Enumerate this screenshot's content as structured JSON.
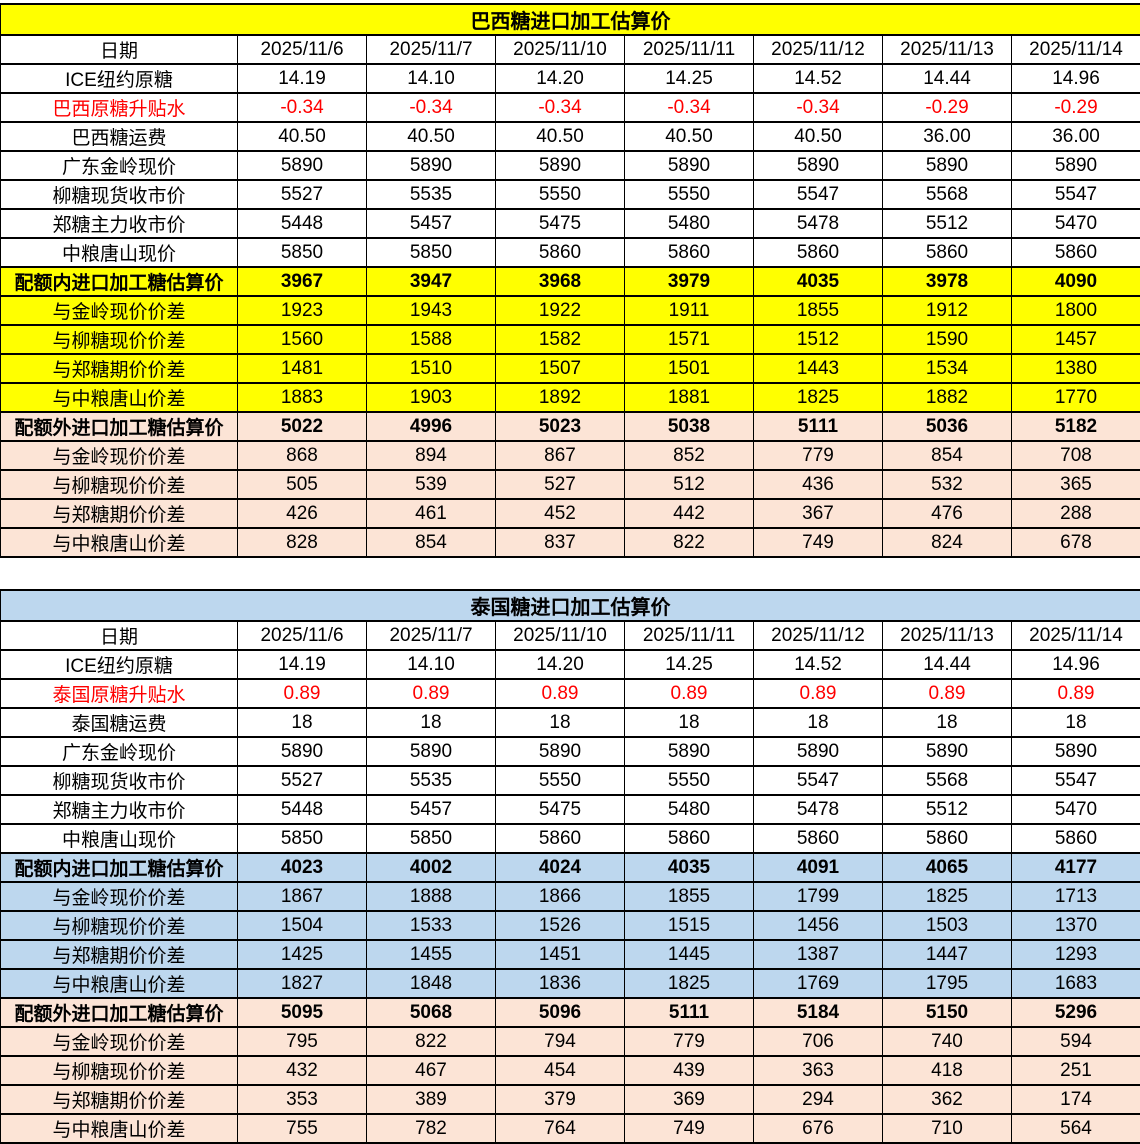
{
  "colors": {
    "border": "#000000",
    "red_text": "#FF0000",
    "yellow": "#FFFF00",
    "blue": "#BDD7EE",
    "peach": "#FCE4D6",
    "white": "#FFFFFF"
  },
  "date_label": "日期",
  "dates": [
    "2025/11/6",
    "2025/11/7",
    "2025/11/10",
    "2025/11/11",
    "2025/11/12",
    "2025/11/13",
    "2025/11/14"
  ],
  "tables": [
    {
      "id": "brazil",
      "title": "巴西糖进口加工估算价",
      "theme": {
        "title_bg": "#FFFF00",
        "quota_bg": "#FFFF00",
        "extra_bg": "#FCE4D6",
        "plain_bg": "#FFFFFF"
      },
      "rows": [
        {
          "label": "ICE纽约原糖",
          "style": "plain",
          "values": [
            "14.19",
            "14.10",
            "14.20",
            "14.25",
            "14.52",
            "14.44",
            "14.96"
          ]
        },
        {
          "label": "巴西原糖升贴水",
          "style": "red",
          "values": [
            "-0.34",
            "-0.34",
            "-0.34",
            "-0.34",
            "-0.34",
            "-0.29",
            "-0.29"
          ]
        },
        {
          "label": "巴西糖运费",
          "style": "plain",
          "values": [
            "40.50",
            "40.50",
            "40.50",
            "40.50",
            "40.50",
            "36.00",
            "36.00"
          ]
        },
        {
          "label": "广东金岭现价",
          "style": "plain",
          "values": [
            "5890",
            "5890",
            "5890",
            "5890",
            "5890",
            "5890",
            "5890"
          ]
        },
        {
          "label": "柳糖现货收市价",
          "style": "plain",
          "values": [
            "5527",
            "5535",
            "5550",
            "5550",
            "5547",
            "5568",
            "5547"
          ]
        },
        {
          "label": "郑糖主力收市价",
          "style": "plain",
          "values": [
            "5448",
            "5457",
            "5475",
            "5480",
            "5478",
            "5512",
            "5470"
          ]
        },
        {
          "label": "中粮唐山现价",
          "style": "plain",
          "values": [
            "5850",
            "5850",
            "5860",
            "5860",
            "5860",
            "5860",
            "5860"
          ]
        },
        {
          "label": "配额内进口加工糖估算价",
          "style": "quota-bold",
          "values": [
            "3967",
            "3947",
            "3968",
            "3979",
            "4035",
            "3978",
            "4090"
          ]
        },
        {
          "label": "与金岭现价价差",
          "style": "quota",
          "values": [
            "1923",
            "1943",
            "1922",
            "1911",
            "1855",
            "1912",
            "1800"
          ]
        },
        {
          "label": "与柳糖现价价差",
          "style": "quota",
          "values": [
            "1560",
            "1588",
            "1582",
            "1571",
            "1512",
            "1590",
            "1457"
          ]
        },
        {
          "label": "与郑糖期价价差",
          "style": "quota",
          "values": [
            "1481",
            "1510",
            "1507",
            "1501",
            "1443",
            "1534",
            "1380"
          ]
        },
        {
          "label": "与中粮唐山价差",
          "style": "quota",
          "values": [
            "1883",
            "1903",
            "1892",
            "1881",
            "1825",
            "1882",
            "1770"
          ]
        },
        {
          "label": "配额外进口加工糖估算价",
          "style": "extra-bold",
          "values": [
            "5022",
            "4996",
            "5023",
            "5038",
            "5111",
            "5036",
            "5182"
          ]
        },
        {
          "label": "与金岭现价价差",
          "style": "extra",
          "values": [
            "868",
            "894",
            "867",
            "852",
            "779",
            "854",
            "708"
          ]
        },
        {
          "label": "与柳糖现价价差",
          "style": "extra",
          "values": [
            "505",
            "539",
            "527",
            "512",
            "436",
            "532",
            "365"
          ]
        },
        {
          "label": "与郑糖期价价差",
          "style": "extra",
          "values": [
            "426",
            "461",
            "452",
            "442",
            "367",
            "476",
            "288"
          ]
        },
        {
          "label": "与中粮唐山价差",
          "style": "extra",
          "values": [
            "828",
            "854",
            "837",
            "822",
            "749",
            "824",
            "678"
          ]
        }
      ]
    },
    {
      "id": "thailand",
      "title": "泰国糖进口加工估算价",
      "theme": {
        "title_bg": "#BDD7EE",
        "quota_bg": "#BDD7EE",
        "extra_bg": "#FCE4D6",
        "plain_bg": "#FFFFFF"
      },
      "rows": [
        {
          "label": "ICE纽约原糖",
          "style": "plain",
          "values": [
            "14.19",
            "14.10",
            "14.20",
            "14.25",
            "14.52",
            "14.44",
            "14.96"
          ]
        },
        {
          "label": "泰国原糖升贴水",
          "style": "red",
          "values": [
            "0.89",
            "0.89",
            "0.89",
            "0.89",
            "0.89",
            "0.89",
            "0.89"
          ]
        },
        {
          "label": "泰国糖运费",
          "style": "plain",
          "values": [
            "18",
            "18",
            "18",
            "18",
            "18",
            "18",
            "18"
          ]
        },
        {
          "label": "广东金岭现价",
          "style": "plain",
          "values": [
            "5890",
            "5890",
            "5890",
            "5890",
            "5890",
            "5890",
            "5890"
          ]
        },
        {
          "label": "柳糖现货收市价",
          "style": "plain",
          "values": [
            "5527",
            "5535",
            "5550",
            "5550",
            "5547",
            "5568",
            "5547"
          ]
        },
        {
          "label": "郑糖主力收市价",
          "style": "plain",
          "values": [
            "5448",
            "5457",
            "5475",
            "5480",
            "5478",
            "5512",
            "5470"
          ]
        },
        {
          "label": "中粮唐山现价",
          "style": "plain",
          "values": [
            "5850",
            "5850",
            "5860",
            "5860",
            "5860",
            "5860",
            "5860"
          ]
        },
        {
          "label": "配额内进口加工糖估算价",
          "style": "quota-bold",
          "values": [
            "4023",
            "4002",
            "4024",
            "4035",
            "4091",
            "4065",
            "4177"
          ]
        },
        {
          "label": "与金岭现价价差",
          "style": "quota",
          "values": [
            "1867",
            "1888",
            "1866",
            "1855",
            "1799",
            "1825",
            "1713"
          ]
        },
        {
          "label": "与柳糖现价价差",
          "style": "quota",
          "values": [
            "1504",
            "1533",
            "1526",
            "1515",
            "1456",
            "1503",
            "1370"
          ]
        },
        {
          "label": "与郑糖期价价差",
          "style": "quota",
          "values": [
            "1425",
            "1455",
            "1451",
            "1445",
            "1387",
            "1447",
            "1293"
          ]
        },
        {
          "label": "与中粮唐山价差",
          "style": "quota",
          "values": [
            "1827",
            "1848",
            "1836",
            "1825",
            "1769",
            "1795",
            "1683"
          ]
        },
        {
          "label": "配额外进口加工糖估算价",
          "style": "extra-bold",
          "values": [
            "5095",
            "5068",
            "5096",
            "5111",
            "5184",
            "5150",
            "5296"
          ]
        },
        {
          "label": "与金岭现价价差",
          "style": "extra",
          "values": [
            "795",
            "822",
            "794",
            "779",
            "706",
            "740",
            "594"
          ]
        },
        {
          "label": "与柳糖现价价差",
          "style": "extra",
          "values": [
            "432",
            "467",
            "454",
            "439",
            "363",
            "418",
            "251"
          ]
        },
        {
          "label": "与郑糖期价价差",
          "style": "extra",
          "values": [
            "353",
            "389",
            "379",
            "369",
            "294",
            "362",
            "174"
          ]
        },
        {
          "label": "与中粮唐山价差",
          "style": "extra",
          "values": [
            "755",
            "782",
            "764",
            "749",
            "676",
            "710",
            "564"
          ]
        }
      ]
    }
  ]
}
